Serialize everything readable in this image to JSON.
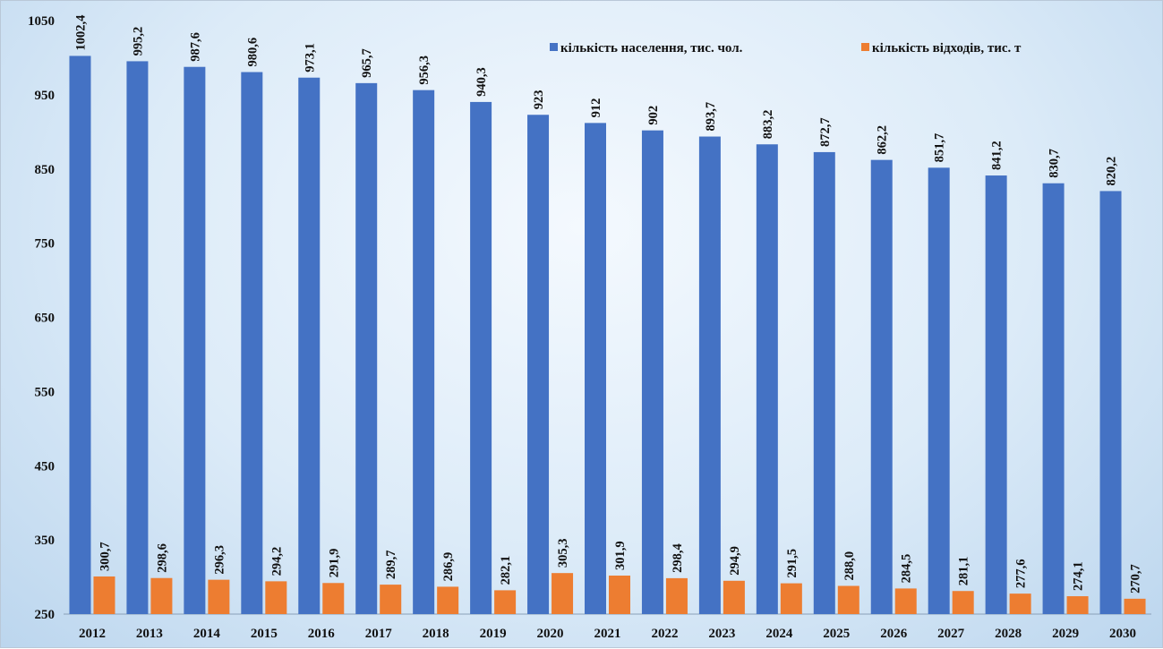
{
  "chart_data": {
    "type": "bar",
    "title": "",
    "xlabel": "",
    "ylabel": "",
    "ylim": [
      250,
      1050
    ],
    "yticks": [
      "250",
      "350",
      "450",
      "550",
      "650",
      "750",
      "850",
      "950",
      "1050"
    ],
    "grid": false,
    "legend": "top-right",
    "categories": [
      "2012",
      "2013",
      "2014",
      "2015",
      "2016",
      "2017",
      "2018",
      "2019",
      "2020",
      "2021",
      "2022",
      "2023",
      "2024",
      "2025",
      "2026",
      "2027",
      "2028",
      "2029",
      "2030"
    ],
    "series": [
      {
        "name": "кількість населення, тис. чол.",
        "color": "#4472c4",
        "values": [
          1002.4,
          995.2,
          987.6,
          980.6,
          973.1,
          965.7,
          956.3,
          940.3,
          923,
          912,
          902,
          893.7,
          883.2,
          872.7,
          862.2,
          851.7,
          841.2,
          830.7,
          820.2
        ],
        "labels": [
          "1002,4",
          "995,2",
          "987,6",
          "980,6",
          "973,1",
          "965,7",
          "956,3",
          "940,3",
          "923",
          "912",
          "902",
          "893,7",
          "883,2",
          "872,7",
          "862,2",
          "851,7",
          "841,2",
          "830,7",
          "820,2"
        ]
      },
      {
        "name": "кількість відходів, тис. т",
        "color": "#ed7d31",
        "values": [
          300.7,
          298.6,
          296.3,
          294.2,
          291.9,
          289.7,
          286.9,
          282.1,
          305.3,
          301.9,
          298.4,
          294.9,
          291.5,
          288.0,
          284.5,
          281.1,
          277.6,
          274.1,
          270.7
        ],
        "labels": [
          "300,7",
          "298,6",
          "296,3",
          "294,2",
          "291,9",
          "289,7",
          "286,9",
          "282,1",
          "305,3",
          "301,9",
          "298,4",
          "294,9",
          "291,5",
          "288,0",
          "284,5",
          "281,1",
          "277,6",
          "274,1",
          "270,7"
        ]
      }
    ]
  }
}
